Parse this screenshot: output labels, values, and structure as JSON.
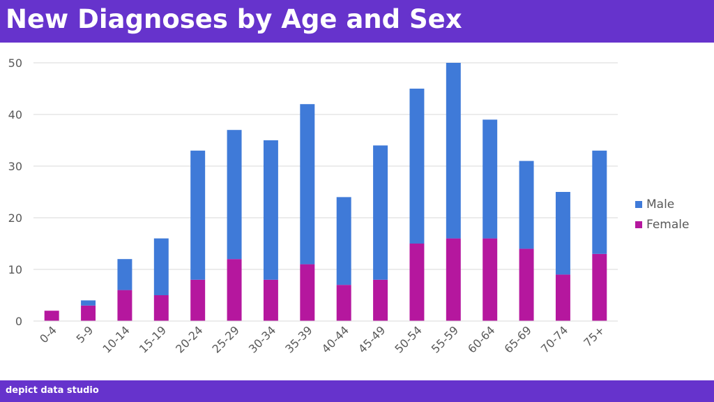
{
  "header": {
    "title": "New Diagnoses by Age and Sex",
    "background": "#6633cc"
  },
  "footer": {
    "brand": "depict data studio"
  },
  "chart_data": {
    "type": "bar",
    "stacked": true,
    "categories": [
      "0-4",
      "5-9",
      "10-14",
      "15-19",
      "20-24",
      "25-29",
      "30-34",
      "35-39",
      "40-44",
      "45-49",
      "50-54",
      "55-59",
      "60-64",
      "65-69",
      "70-74",
      "75+"
    ],
    "series": [
      {
        "name": "Female",
        "color": "#b5179e",
        "values": [
          2,
          3,
          6,
          5,
          8,
          12,
          8,
          11,
          7,
          8,
          15,
          16,
          16,
          14,
          9,
          13
        ]
      },
      {
        "name": "Male",
        "color": "#3f7ad8",
        "values": [
          0,
          1,
          6,
          11,
          25,
          25,
          27,
          31,
          17,
          26,
          30,
          34,
          23,
          17,
          16,
          20
        ]
      }
    ],
    "legend_order": [
      "Male",
      "Female"
    ],
    "legend_position": "right",
    "ylim": [
      0,
      50
    ],
    "yticks": [
      0,
      10,
      20,
      30,
      40,
      50
    ],
    "grid": true,
    "xlabel": "",
    "ylabel": ""
  }
}
